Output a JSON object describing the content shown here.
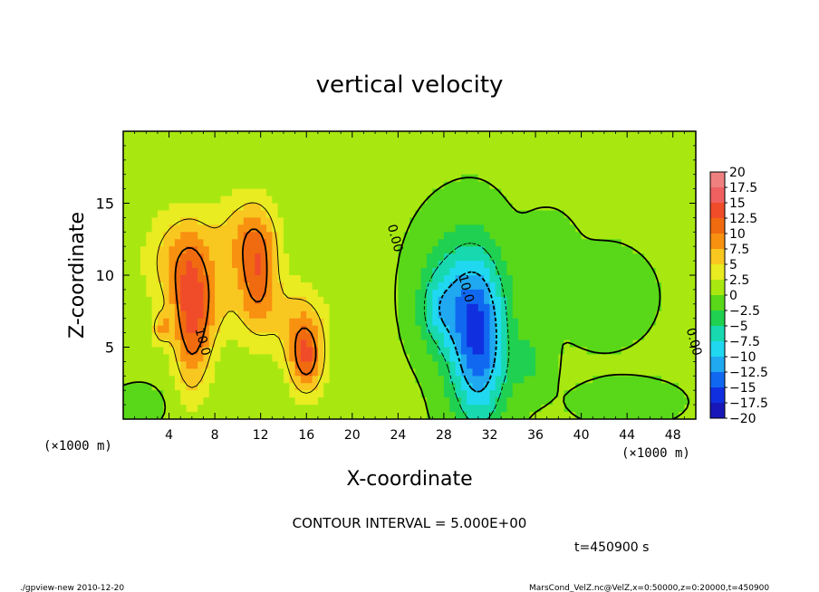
{
  "chart_data": {
    "type": "heatmap",
    "title": "vertical velocity",
    "xlabel": "X-coordinate",
    "ylabel": "Z-coordinate",
    "x_unit": "(×1000 m)",
    "x_unit_right": "(×1000 m)",
    "xlim": [
      0,
      50
    ],
    "ylim": [
      0,
      20
    ],
    "xticks": [
      "4",
      "8",
      "12",
      "16",
      "20",
      "24",
      "28",
      "32",
      "36",
      "40",
      "44",
      "48"
    ],
    "yticks": [
      "5",
      "10",
      "15"
    ],
    "contour_interval_label": "CONTOUR INTERVAL = 5.000E+00",
    "time_label": "t=450900 s",
    "footer_left": "./gpview-new  2010-12-20",
    "footer_right": "MarsCond_VelZ.nc@VelZ,x=0:50000,z=0:20000,t=450900",
    "contour_labels": [
      {
        "text": "0.00",
        "x": 23.4,
        "y": 12.5
      },
      {
        "text": "10.0",
        "x": 6.6,
        "y": 5.3
      },
      {
        "text": "10.0",
        "x": 29.6,
        "y": 9.0
      },
      {
        "text": "0.00",
        "x": 49.5,
        "y": 5.3
      }
    ],
    "colorbar": {
      "labels": [
        "20",
        "17.5",
        "15",
        "12.5",
        "10",
        "7.5",
        "5",
        "2.5",
        "0",
        "−2.5",
        "−5",
        "−7.5",
        "−10",
        "−12.5",
        "−15",
        "−17.5",
        "−20"
      ],
      "colors": [
        "#f08080",
        "#f06060",
        "#f04c2a",
        "#f06a10",
        "#f89010",
        "#f8c820",
        "#e8ec20",
        "#a8e810",
        "#58d818",
        "#20d050",
        "#18d8b0",
        "#20d8f0",
        "#20a8f0",
        "#1068f0",
        "#1030e0",
        "#1818b8",
        "#6020b0"
      ]
    },
    "field": {
      "background": 0.3,
      "updrafts": [
        {
          "x": 6.0,
          "y": 7.0,
          "sx": 1.2,
          "sy": 3.5,
          "amp": 12
        },
        {
          "x": 4.5,
          "y": 11.0,
          "sx": 2.0,
          "sy": 2.5,
          "amp": 6
        },
        {
          "x": 3.3,
          "y": 6.3,
          "sx": 0.6,
          "sy": 0.8,
          "amp": 6
        },
        {
          "x": 11.7,
          "y": 10.0,
          "sx": 1.2,
          "sy": 2.8,
          "amp": 10
        },
        {
          "x": 10.5,
          "y": 13.0,
          "sx": 2.2,
          "sy": 2.0,
          "amp": 5
        },
        {
          "x": 16.0,
          "y": 4.2,
          "sx": 1.1,
          "sy": 1.8,
          "amp": 11
        },
        {
          "x": 15.0,
          "y": 7.0,
          "sx": 2.0,
          "sy": 2.0,
          "amp": 5
        },
        {
          "x": 8.5,
          "y": 8.5,
          "sx": 1.5,
          "sy": 2.5,
          "amp": 4
        },
        {
          "x": 31.0,
          "y": 5.0,
          "sx": 1.7,
          "sy": 3.8,
          "amp": -14
        },
        {
          "x": 29.5,
          "y": 9.0,
          "sx": 2.3,
          "sy": 3.0,
          "amp": -6
        },
        {
          "x": 27.5,
          "y": 7.5,
          "sx": 1.2,
          "sy": 1.8,
          "amp": -5
        },
        {
          "x": 35.5,
          "y": 4.0,
          "sx": 1.2,
          "sy": 1.5,
          "amp": -3
        },
        {
          "x": 42.0,
          "y": 8.5,
          "sx": 2.5,
          "sy": 2.0,
          "amp": -2
        },
        {
          "x": 44.0,
          "y": 1.2,
          "sx": 3.0,
          "sy": 1.0,
          "amp": -1.5
        },
        {
          "x": 1.5,
          "y": 1.0,
          "sx": 1.5,
          "sy": 0.8,
          "amp": -2
        },
        {
          "x": 37.0,
          "y": 12.0,
          "sx": 1.5,
          "sy": 1.5,
          "amp": -1.5
        }
      ]
    }
  }
}
